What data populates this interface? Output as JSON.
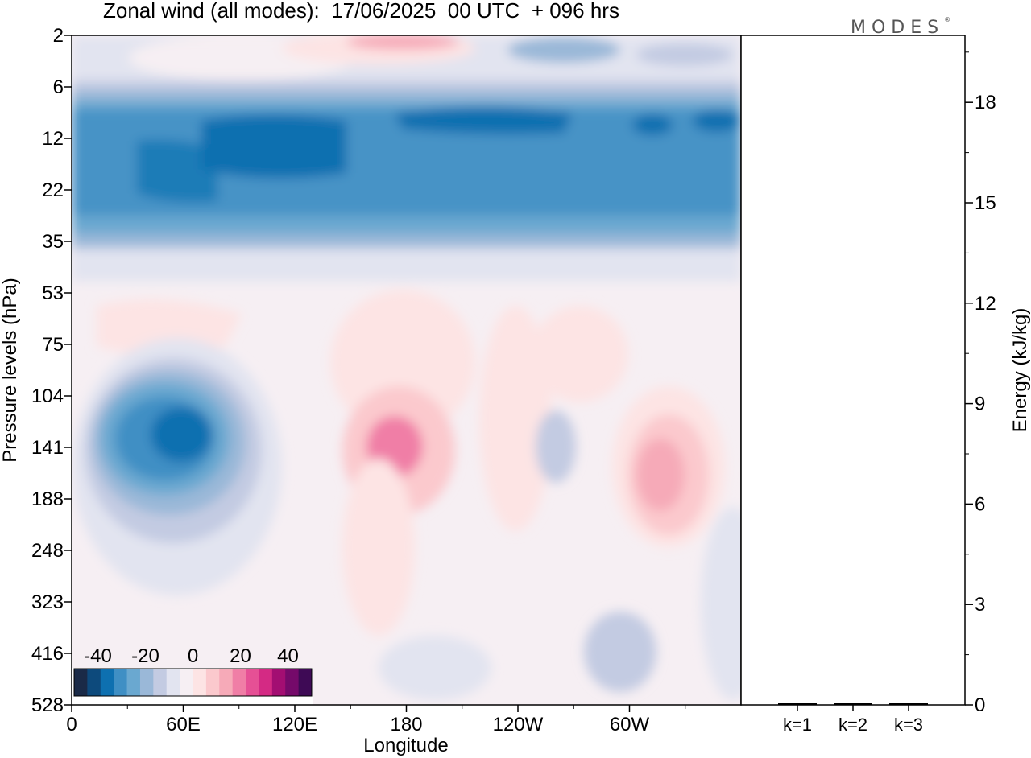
{
  "figure": {
    "title": "Zonal wind (all modes):  17/06/2025  00 UTC  + 096 hrs",
    "logo": "MODES"
  },
  "chart_data": [
    {
      "type": "heatmap",
      "title": "Zonal wind (all modes):  17/06/2025  00 UTC  + 096 hrs",
      "xlabel": "Longitude",
      "ylabel": "Pressure levels (hPa)",
      "x_ticks": [
        "0",
        "60E",
        "120E",
        "180",
        "120W",
        "60W"
      ],
      "x_tick_degrees": [
        0,
        60,
        120,
        180,
        240,
        300
      ],
      "xlim": [
        0,
        360
      ],
      "y_ticks": [
        "2",
        "6",
        "12",
        "22",
        "35",
        "53",
        "75",
        "104",
        "141",
        "188",
        "248",
        "323",
        "416",
        "528"
      ],
      "colorbar": {
        "ticks": [
          "-40",
          "-20",
          "0",
          "20",
          "40"
        ],
        "range": [
          -50,
          50
        ],
        "colors": [
          "#1a2a47",
          "#0d4a7c",
          "#0e70b0",
          "#3f8fc4",
          "#6aa8d0",
          "#9ab8d8",
          "#c3cbe2",
          "#e2e4f0",
          "#f6eff3",
          "#fde4e4",
          "#fbc9cd",
          "#f6aab8",
          "#f07ea6",
          "#e65095",
          "#d42a84",
          "#a30e72",
          "#750a6a",
          "#3e0a55"
        ]
      },
      "features": [
        {
          "name": "polar night jet core (easterly)",
          "lon": [
            10,
            360
          ],
          "level_hpa": [
            8,
            30
          ],
          "value": -35
        },
        {
          "name": "upper westerly maximum",
          "lon": [
            60,
            160
          ],
          "level_hpa": [
            2,
            3
          ],
          "value": 20
        },
        {
          "name": "easterly jet core",
          "lon": [
            25,
            95
          ],
          "level_hpa": [
            110,
            200
          ],
          "value": -32
        },
        {
          "name": "westerly maximum",
          "lon": [
            160,
            200
          ],
          "level_hpa": [
            110,
            180
          ],
          "value": 18
        },
        {
          "name": "westerly maximum",
          "lon": [
            290,
            320
          ],
          "level_hpa": [
            120,
            200
          ],
          "value": 12
        },
        {
          "name": "weak easterly",
          "lon": [
            275,
            300
          ],
          "level_hpa": [
            340,
            450
          ],
          "value": -8
        }
      ]
    },
    {
      "type": "bar",
      "ylabel": "Energy (kJ/kg)",
      "categories": [
        "k=1",
        "k=2",
        "k=3"
      ],
      "values": [
        0.02,
        0.01,
        0.01
      ],
      "y_ticks": [
        "0",
        "3",
        "6",
        "9",
        "12",
        "15",
        "18"
      ],
      "ylim": [
        0,
        20
      ]
    }
  ]
}
